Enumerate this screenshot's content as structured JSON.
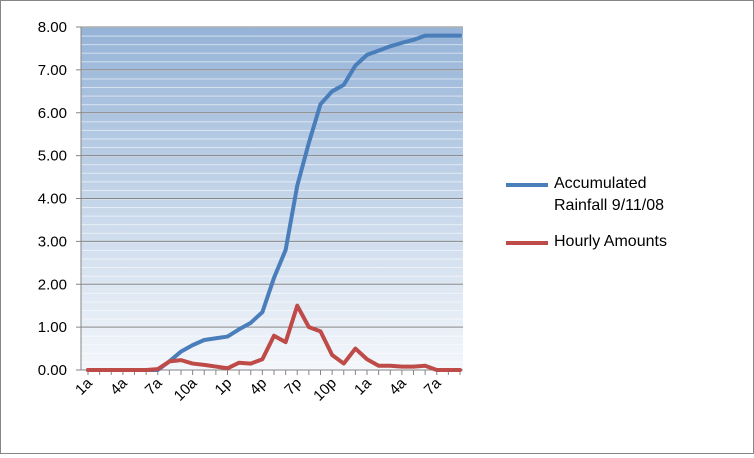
{
  "chart_data": {
    "type": "line",
    "categories": [
      "1a",
      null,
      null,
      "4a",
      null,
      null,
      "7a",
      null,
      null,
      "10a",
      null,
      null,
      "1p",
      null,
      null,
      "4p",
      null,
      null,
      "7p",
      null,
      null,
      "10p",
      null,
      null,
      "1a",
      null,
      null,
      "4a",
      null,
      null,
      "7a",
      null,
      null
    ],
    "series": [
      {
        "name": "Accumulated Rainfall 9/11/08",
        "color": "#4a7ebb",
        "values": [
          0,
          0,
          0,
          0,
          0,
          0,
          0,
          0.2,
          0.43,
          0.58,
          0.7,
          0.74,
          0.78,
          0.95,
          1.1,
          1.35,
          2.15,
          2.8,
          4.3,
          5.3,
          6.2,
          6.5,
          6.65,
          7.1,
          7.35,
          7.45,
          7.55,
          7.63,
          7.7,
          7.8,
          7.8,
          7.8,
          7.8
        ]
      },
      {
        "name": "Hourly Amounts",
        "color": "#be4b48",
        "values": [
          0,
          0,
          0,
          0,
          0,
          0,
          0.02,
          0.2,
          0.23,
          0.15,
          0.12,
          0.08,
          0.04,
          0.17,
          0.15,
          0.25,
          0.8,
          0.65,
          1.5,
          1.0,
          0.9,
          0.35,
          0.15,
          0.5,
          0.25,
          0.1,
          0.1,
          0.08,
          0.08,
          0.1,
          0,
          0,
          0
        ]
      }
    ],
    "ylim": [
      0,
      8
    ],
    "yticks": [
      {
        "value": 0,
        "label": "0.00"
      },
      {
        "value": 1,
        "label": "1.00"
      },
      {
        "value": 2,
        "label": "2.00"
      },
      {
        "value": 3,
        "label": "3.00"
      },
      {
        "value": 4,
        "label": "4.00"
      },
      {
        "value": 5,
        "label": "5.00"
      },
      {
        "value": 6,
        "label": "6.00"
      },
      {
        "value": 7,
        "label": "7.00"
      },
      {
        "value": 8,
        "label": "8.00"
      }
    ],
    "grid": true,
    "legend": "right"
  }
}
